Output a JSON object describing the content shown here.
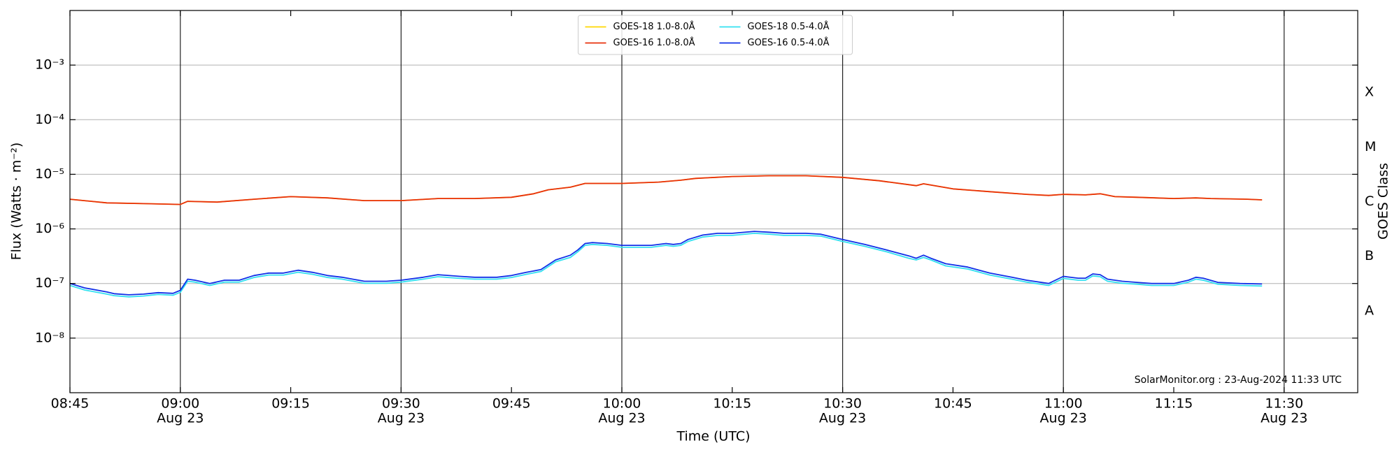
{
  "chart_data": {
    "type": "line",
    "xlabel": "Time (UTC)",
    "ylabel": "Flux (Watts · m⁻²)",
    "y2label": "GOES Class",
    "annotation": "SolarMonitor.org : 23-Aug-2024 11:33 UTC",
    "yscale": "log",
    "ylim": [
      1e-09,
      0.01
    ],
    "yticks": [
      {
        "value": 1e-08,
        "label": "10⁻⁸"
      },
      {
        "value": 1e-07,
        "label": "10⁻⁷"
      },
      {
        "value": 1e-06,
        "label": "10⁻⁶"
      },
      {
        "value": 1e-05,
        "label": "10⁻⁵"
      },
      {
        "value": 0.0001,
        "label": "10⁻⁴"
      },
      {
        "value": 0.001,
        "label": "10⁻³"
      }
    ],
    "y2lim": [
      1e-09,
      0.01
    ],
    "y2ticks": [
      {
        "value": 3.16e-08,
        "label": "A"
      },
      {
        "value": 3.16e-07,
        "label": "B"
      },
      {
        "value": 3.16e-06,
        "label": "C"
      },
      {
        "value": 3.16e-05,
        "label": "M"
      },
      {
        "value": 0.000316,
        "label": "X"
      }
    ],
    "xlim": [
      "08:45",
      "11:40"
    ],
    "xticks": [
      "08:45",
      {
        "value": "09:00",
        "label": "09:00",
        "date": "Aug 23"
      },
      "09:15",
      {
        "value": "09:30",
        "label": "09:30",
        "date": "Aug 23"
      },
      "09:45",
      {
        "value": "10:00",
        "label": "10:00",
        "date": "Aug 23"
      },
      "10:15",
      {
        "value": "10:30",
        "label": "10:30",
        "date": "Aug 23"
      },
      "10:45",
      {
        "value": "11:00",
        "label": "11:00",
        "date": "Aug 23"
      },
      "11:15",
      {
        "value": "11:30",
        "label": "11:30",
        "date": "Aug 23"
      }
    ],
    "ygrid": true,
    "xgrid": true,
    "legend": "upper center",
    "series": [
      {
        "name": "GOES-18 1.0-8.0Å",
        "color": "#ffd700",
        "x": [
          "08:45",
          "08:50",
          "08:55",
          "09:00",
          "09:01",
          "09:05",
          "09:10",
          "09:15",
          "09:20",
          "09:25",
          "09:30",
          "09:35",
          "09:40",
          "09:45",
          "09:48",
          "09:50",
          "09:53",
          "09:55",
          "09:58",
          "10:00",
          "10:05",
          "10:08",
          "10:10",
          "10:15",
          "10:20",
          "10:25",
          "10:30",
          "10:35",
          "10:40",
          "10:41",
          "10:45",
          "10:50",
          "10:55",
          "10:58",
          "11:00",
          "11:03",
          "11:05",
          "11:07",
          "11:10",
          "11:15",
          "11:18",
          "11:20",
          "11:25",
          "11:27"
        ],
        "values": [
          3.5e-06,
          3e-06,
          2.9e-06,
          2.8e-06,
          3.2e-06,
          3.1e-06,
          3.5e-06,
          3.9e-06,
          3.7e-06,
          3.3e-06,
          3.3e-06,
          3.6e-06,
          3.6e-06,
          3.8e-06,
          4.4e-06,
          5.2e-06,
          5.8e-06,
          6.8e-06,
          6.8e-06,
          6.8e-06,
          7.2e-06,
          7.8e-06,
          8.4e-06,
          9.1e-06,
          9.4e-06,
          9.4e-06,
          8.8e-06,
          7.6e-06,
          6.2e-06,
          6.7e-06,
          5.4e-06,
          4.8e-06,
          4.3e-06,
          4.1e-06,
          4.3e-06,
          4.2e-06,
          4.4e-06,
          3.9e-06,
          3.8e-06,
          3.6e-06,
          3.7e-06,
          3.6e-06,
          3.5e-06,
          3.4e-06
        ]
      },
      {
        "name": "GOES-16 1.0-8.0Å",
        "color": "#e8300c",
        "x": [
          "08:45",
          "08:50",
          "08:55",
          "09:00",
          "09:01",
          "09:05",
          "09:10",
          "09:15",
          "09:20",
          "09:25",
          "09:30",
          "09:35",
          "09:40",
          "09:45",
          "09:48",
          "09:50",
          "09:53",
          "09:55",
          "09:58",
          "10:00",
          "10:05",
          "10:08",
          "10:10",
          "10:15",
          "10:20",
          "10:25",
          "10:30",
          "10:35",
          "10:40",
          "10:41",
          "10:45",
          "10:50",
          "10:55",
          "10:58",
          "11:00",
          "11:03",
          "11:05",
          "11:07",
          "11:10",
          "11:15",
          "11:18",
          "11:20",
          "11:25",
          "11:27"
        ],
        "values": [
          3.5e-06,
          3e-06,
          2.9e-06,
          2.8e-06,
          3.2e-06,
          3.1e-06,
          3.5e-06,
          3.9e-06,
          3.7e-06,
          3.3e-06,
          3.3e-06,
          3.6e-06,
          3.6e-06,
          3.8e-06,
          4.4e-06,
          5.2e-06,
          5.8e-06,
          6.8e-06,
          6.8e-06,
          6.8e-06,
          7.2e-06,
          7.8e-06,
          8.4e-06,
          9.1e-06,
          9.4e-06,
          9.4e-06,
          8.8e-06,
          7.6e-06,
          6.2e-06,
          6.7e-06,
          5.4e-06,
          4.8e-06,
          4.3e-06,
          4.1e-06,
          4.3e-06,
          4.2e-06,
          4.4e-06,
          3.9e-06,
          3.8e-06,
          3.6e-06,
          3.7e-06,
          3.6e-06,
          3.5e-06,
          3.4e-06
        ]
      },
      {
        "name": "GOES-18 0.5-4.0Å",
        "color": "#33e0f0",
        "x": [
          "08:45",
          "08:47",
          "08:50",
          "08:51",
          "08:53",
          "08:55",
          "08:57",
          "08:59",
          "09:00",
          "09:01",
          "09:02",
          "09:04",
          "09:06",
          "09:08",
          "09:10",
          "09:12",
          "09:14",
          "09:16",
          "09:18",
          "09:20",
          "09:22",
          "09:25",
          "09:28",
          "09:30",
          "09:33",
          "09:35",
          "09:38",
          "09:40",
          "09:43",
          "09:45",
          "09:47",
          "09:49",
          "09:51",
          "09:53",
          "09:54",
          "09:55",
          "09:56",
          "09:58",
          "10:00",
          "10:02",
          "10:04",
          "10:06",
          "10:07",
          "10:08",
          "10:09",
          "10:11",
          "10:13",
          "10:15",
          "10:18",
          "10:20",
          "10:22",
          "10:25",
          "10:27",
          "10:30",
          "10:33",
          "10:36",
          "10:39",
          "10:40",
          "10:41",
          "10:42",
          "10:44",
          "10:47",
          "10:50",
          "10:53",
          "10:55",
          "10:58",
          "11:00",
          "11:02",
          "11:03",
          "11:04",
          "11:05",
          "11:06",
          "11:08",
          "11:10",
          "11:12",
          "11:15",
          "11:17",
          "11:18",
          "11:19",
          "11:21",
          "11:24",
          "11:27"
        ],
        "values": [
          9.2e-08,
          7.6e-08,
          6.4e-08,
          6e-08,
          5.7e-08,
          5.9e-08,
          6.3e-08,
          6.1e-08,
          6.9e-08,
          1.1e-07,
          1.06e-07,
          9.2e-08,
          1.06e-07,
          1.06e-07,
          1.29e-07,
          1.43e-07,
          1.43e-07,
          1.61e-07,
          1.47e-07,
          1.29e-07,
          1.2e-07,
          1.01e-07,
          1.01e-07,
          1.06e-07,
          1.2e-07,
          1.33e-07,
          1.24e-07,
          1.2e-07,
          1.2e-07,
          1.29e-07,
          1.47e-07,
          1.66e-07,
          2.5e-07,
          3e-07,
          3.8e-07,
          5e-07,
          5.2e-07,
          5e-07,
          4.6e-07,
          4.6e-07,
          4.6e-07,
          5e-07,
          4.8e-07,
          5e-07,
          5.9e-07,
          7.1e-07,
          7.6e-07,
          7.6e-07,
          8.3e-07,
          8e-07,
          7.6e-07,
          7.6e-07,
          7.4e-07,
          5.9e-07,
          4.8e-07,
          3.8e-07,
          2.9e-07,
          2.7e-07,
          3e-07,
          2.7e-07,
          2.1e-07,
          1.84e-07,
          1.43e-07,
          1.2e-07,
          1.06e-07,
          9.2e-08,
          1.24e-07,
          1.15e-07,
          1.15e-07,
          1.38e-07,
          1.33e-07,
          1.1e-07,
          1.01e-07,
          9.7e-08,
          9.2e-08,
          9.2e-08,
          1.06e-07,
          1.2e-07,
          1.15e-07,
          9.7e-08,
          9.2e-08,
          9e-08
        ]
      },
      {
        "name": "GOES-16 0.5-4.0Å",
        "color": "#1030e8",
        "x": [
          "08:45",
          "08:47",
          "08:50",
          "08:51",
          "08:53",
          "08:55",
          "08:57",
          "08:59",
          "09:00",
          "09:01",
          "09:02",
          "09:04",
          "09:06",
          "09:08",
          "09:10",
          "09:12",
          "09:14",
          "09:16",
          "09:18",
          "09:20",
          "09:22",
          "09:25",
          "09:28",
          "09:30",
          "09:33",
          "09:35",
          "09:38",
          "09:40",
          "09:43",
          "09:45",
          "09:47",
          "09:49",
          "09:51",
          "09:53",
          "09:54",
          "09:55",
          "09:56",
          "09:58",
          "10:00",
          "10:02",
          "10:04",
          "10:06",
          "10:07",
          "10:08",
          "10:09",
          "10:11",
          "10:13",
          "10:15",
          "10:18",
          "10:20",
          "10:22",
          "10:25",
          "10:27",
          "10:30",
          "10:33",
          "10:36",
          "10:39",
          "10:40",
          "10:41",
          "10:42",
          "10:44",
          "10:47",
          "10:50",
          "10:53",
          "10:55",
          "10:58",
          "11:00",
          "11:02",
          "11:03",
          "11:04",
          "11:05",
          "11:06",
          "11:08",
          "11:10",
          "11:12",
          "11:15",
          "11:17",
          "11:18",
          "11:19",
          "11:21",
          "11:24",
          "11:27"
        ],
        "values": [
          1e-07,
          8.3e-08,
          7e-08,
          6.5e-08,
          6.2e-08,
          6.4e-08,
          6.8e-08,
          6.6e-08,
          7.5e-08,
          1.2e-07,
          1.15e-07,
          1e-07,
          1.15e-07,
          1.15e-07,
          1.4e-07,
          1.55e-07,
          1.55e-07,
          1.75e-07,
          1.6e-07,
          1.4e-07,
          1.3e-07,
          1.1e-07,
          1.1e-07,
          1.15e-07,
          1.3e-07,
          1.45e-07,
          1.35e-07,
          1.3e-07,
          1.3e-07,
          1.4e-07,
          1.6e-07,
          1.8e-07,
          2.7e-07,
          3.3e-07,
          4.1e-07,
          5.4e-07,
          5.6e-07,
          5.4e-07,
          5e-07,
          5e-07,
          5e-07,
          5.4e-07,
          5.2e-07,
          5.4e-07,
          6.4e-07,
          7.7e-07,
          8.3e-07,
          8.3e-07,
          9e-07,
          8.7e-07,
          8.3e-07,
          8.3e-07,
          8e-07,
          6.4e-07,
          5.2e-07,
          4.1e-07,
          3.2e-07,
          2.9e-07,
          3.3e-07,
          2.9e-07,
          2.3e-07,
          2e-07,
          1.55e-07,
          1.3e-07,
          1.15e-07,
          1e-07,
          1.35e-07,
          1.25e-07,
          1.25e-07,
          1.5e-07,
          1.45e-07,
          1.2e-07,
          1.1e-07,
          1.05e-07,
          1e-07,
          1e-07,
          1.15e-07,
          1.3e-07,
          1.25e-07,
          1.05e-07,
          1e-07,
          9.8e-08
        ]
      }
    ]
  }
}
